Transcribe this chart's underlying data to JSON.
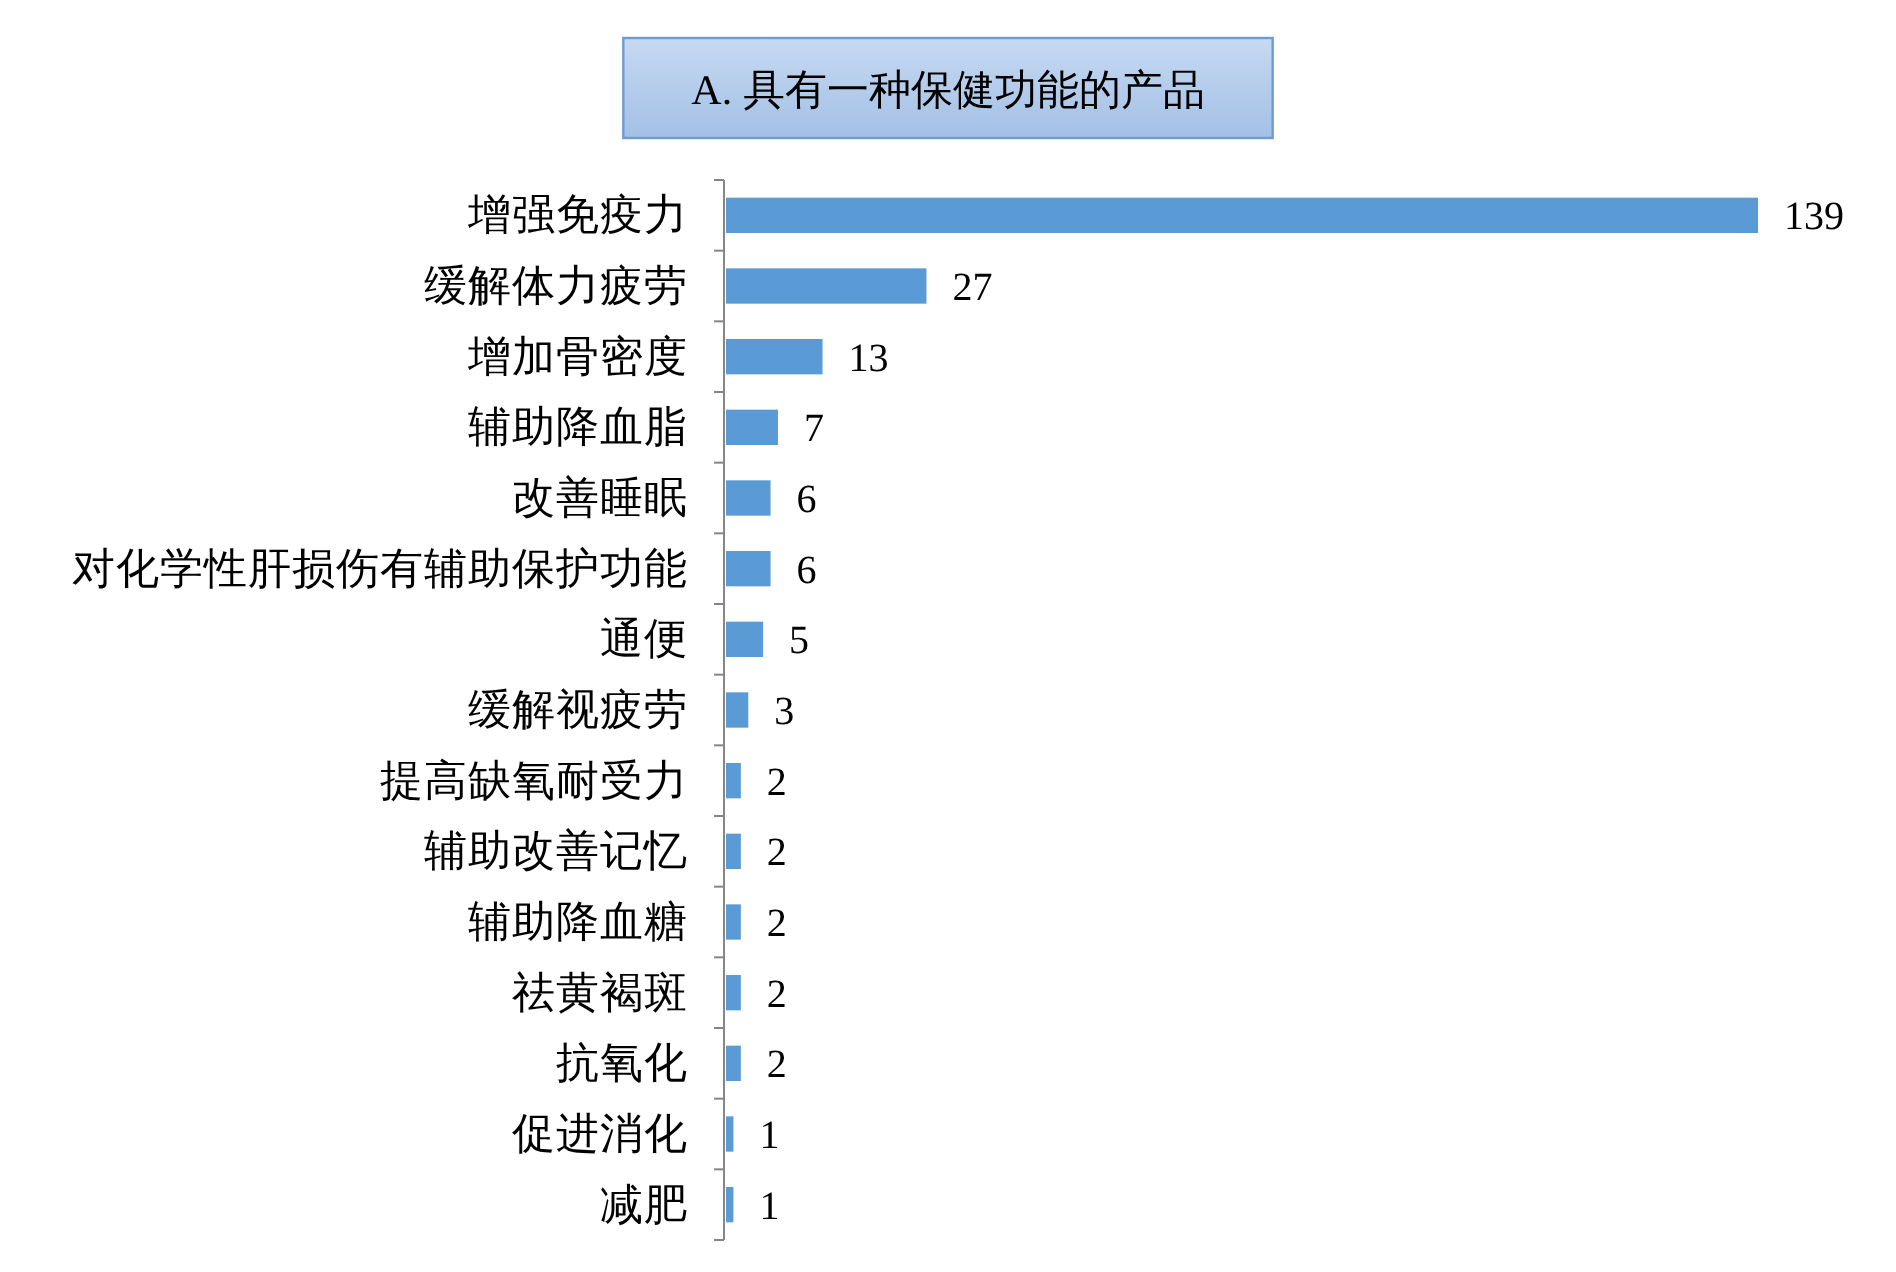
{
  "chart_data": {
    "type": "bar",
    "orientation": "horizontal",
    "title": "A. 具有一种保健功能的产品",
    "categories": [
      "增强免疫力",
      "缓解体力疲劳",
      "增加骨密度",
      "辅助降血脂",
      "改善睡眠",
      "对化学性肝损伤有辅助保护功能",
      "通便",
      "缓解视疲劳",
      "提高缺氧耐受力",
      "辅助改善记忆",
      "辅助降血糖",
      "祛黄褐斑",
      "抗氧化",
      "促进消化",
      "减肥"
    ],
    "values": [
      139,
      27,
      13,
      7,
      6,
      6,
      5,
      3,
      2,
      2,
      2,
      2,
      2,
      1,
      1
    ],
    "color": "#5b9bd5",
    "data_labels": true
  }
}
